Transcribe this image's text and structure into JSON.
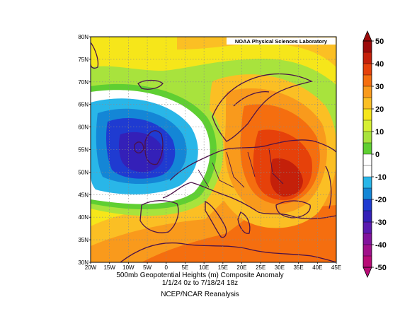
{
  "credit": "NOAA Physical Sciences Laboratory",
  "caption": {
    "line1": "500mb Geopotential Heights (m)    Composite Anomaly",
    "line2": "1/1/24 0z  to 7/18/24 18z",
    "line3": "NCEP/NCAR Reanalysis"
  },
  "map": {
    "lon_ticks": [
      "20W",
      "15W",
      "10W",
      "5W",
      "0",
      "5E",
      "10E",
      "15E",
      "20E",
      "25E",
      "30E",
      "35E",
      "40E",
      "45E"
    ],
    "lat_ticks": [
      "80N",
      "75N",
      "70N",
      "65N",
      "60N",
      "55N",
      "50N",
      "45N",
      "40N",
      "35N",
      "30N"
    ],
    "lon_range": [
      -20,
      45
    ],
    "lat_range": [
      30,
      80
    ],
    "grid": true
  },
  "colorbar": {
    "labels": [
      "50",
      "40",
      "30",
      "20",
      "10",
      "0",
      "-10",
      "-20",
      "-30",
      "-40",
      "-50"
    ],
    "colors": [
      "#9c0a0a",
      "#c4200a",
      "#e6410a",
      "#f56e0f",
      "#f99a1c",
      "#fbbf24",
      "#f6e61a",
      "#d6ef33",
      "#a8e33d",
      "#5fcf32",
      "#ffffff",
      "#ffffff",
      "#29b6e8",
      "#1486d6",
      "#1f3bd1",
      "#3420b8",
      "#5a1ab0",
      "#82139c",
      "#a0108a",
      "#b80b77"
    ]
  },
  "palette": {
    "anom_pos": [
      "#f6e61a",
      "#fbbf24",
      "#f99a1c",
      "#f56e0f",
      "#e6410a",
      "#c4200a"
    ],
    "anom_neg": [
      "#29b6e8",
      "#1486d6",
      "#1f3bd1",
      "#3420b8"
    ],
    "neutral": "#ffffff",
    "near_zero_pos": "#d6ef33",
    "low_pos": "#a8e33d",
    "coast": "#4b1248"
  }
}
